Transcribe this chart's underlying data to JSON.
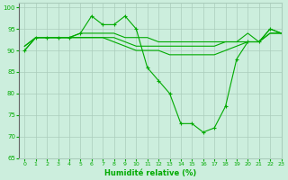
{
  "background_color": "#cceedd",
  "grid_color": "#aaccbb",
  "line_color": "#00aa00",
  "xlabel": "Humidité relative (%)",
  "xlim": [
    -0.5,
    23
  ],
  "ylim": [
    65,
    101
  ],
  "yticks": [
    65,
    70,
    75,
    80,
    85,
    90,
    95,
    100
  ],
  "xticks": [
    0,
    1,
    2,
    3,
    4,
    5,
    6,
    7,
    8,
    9,
    10,
    11,
    12,
    13,
    14,
    15,
    16,
    17,
    18,
    19,
    20,
    21,
    22,
    23
  ],
  "series_main": {
    "x": [
      0,
      1,
      2,
      3,
      4,
      5,
      6,
      7,
      8,
      9,
      10,
      11,
      12,
      13,
      14,
      15,
      16,
      17,
      18,
      19,
      20,
      21,
      22,
      23
    ],
    "y": [
      90,
      93,
      93,
      93,
      93,
      94,
      98,
      96,
      96,
      98,
      95,
      86,
      83,
      80,
      73,
      73,
      71,
      72,
      77,
      88,
      92,
      92,
      95,
      94
    ]
  },
  "series_flat1": {
    "x": [
      0,
      1,
      2,
      3,
      4,
      5,
      6,
      7,
      8,
      9,
      10,
      11,
      12,
      13,
      14,
      15,
      16,
      17,
      18,
      19,
      20,
      21,
      22,
      23
    ],
    "y": [
      91,
      93,
      93,
      93,
      93,
      94,
      94,
      94,
      94,
      93,
      93,
      93,
      92,
      92,
      92,
      92,
      92,
      92,
      92,
      92,
      94,
      92,
      95,
      94
    ]
  },
  "series_flat2": {
    "x": [
      0,
      1,
      2,
      3,
      4,
      5,
      6,
      7,
      8,
      9,
      10,
      11,
      12,
      13,
      14,
      15,
      16,
      17,
      18,
      19,
      20,
      21,
      22,
      23
    ],
    "y": [
      91,
      93,
      93,
      93,
      93,
      93,
      93,
      93,
      93,
      92,
      91,
      91,
      91,
      91,
      91,
      91,
      91,
      91,
      92,
      92,
      92,
      92,
      94,
      94
    ]
  },
  "series_flat3": {
    "x": [
      0,
      1,
      2,
      3,
      4,
      5,
      6,
      7,
      8,
      9,
      10,
      11,
      12,
      13,
      14,
      15,
      16,
      17,
      18,
      19,
      20,
      21,
      22,
      23
    ],
    "y": [
      90,
      93,
      93,
      93,
      93,
      93,
      93,
      93,
      92,
      91,
      90,
      90,
      90,
      89,
      89,
      89,
      89,
      89,
      90,
      91,
      92,
      92,
      94,
      94
    ]
  }
}
